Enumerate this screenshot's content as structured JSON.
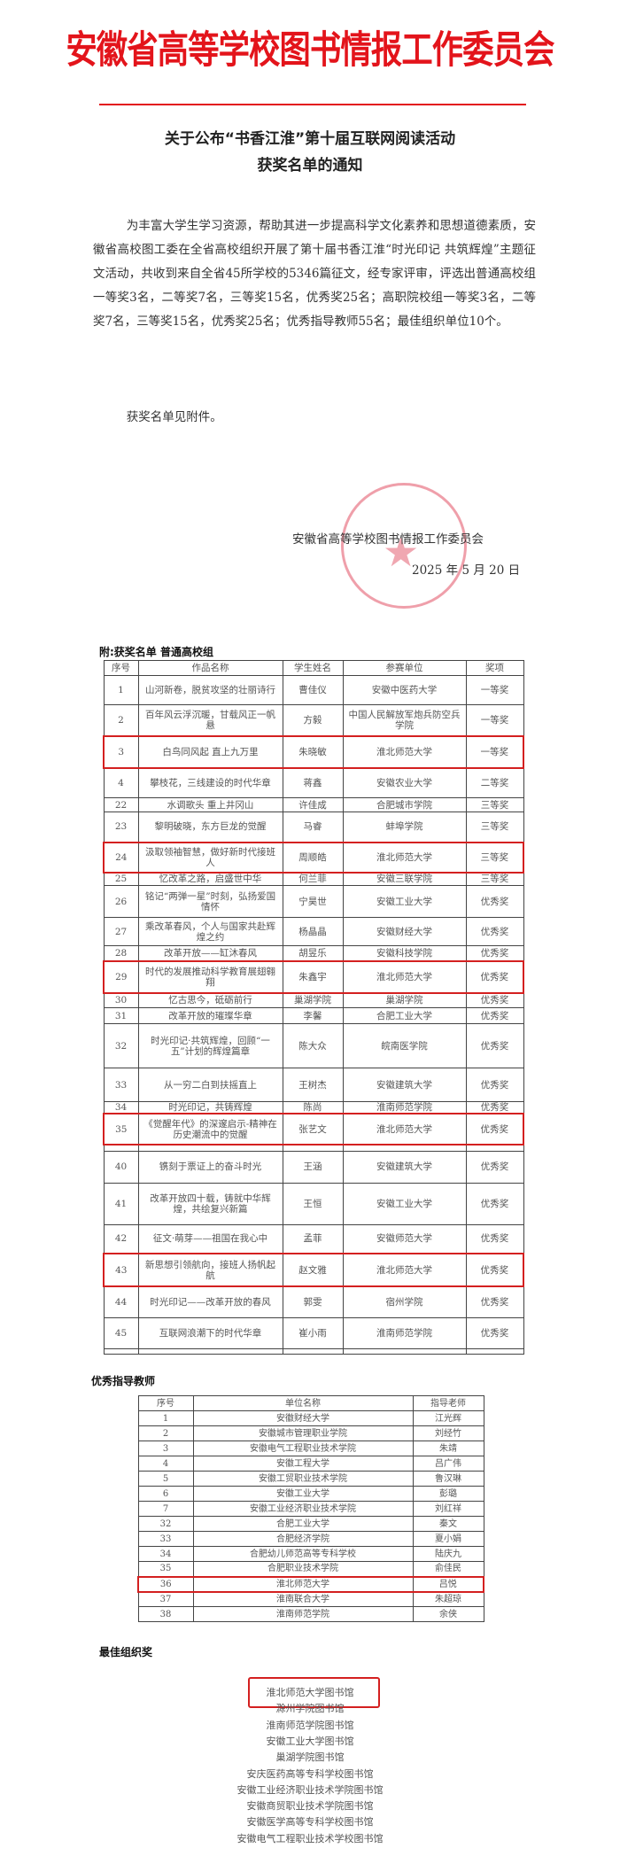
{
  "header": {
    "org_name": "安徽省高等学校图书情报工作委员会",
    "accent_color": "#e3141b"
  },
  "notice": {
    "title_line1": "关于公布“书香江淮”第十届互联网阅读活动",
    "title_line2": "获奖名单的通知",
    "paragraph1": "为丰富大学生学习资源，帮助其进一步提高科学文化素养和思想道德素质，安徽省高校图工委在全省高校组织开展了第十届书香江淮“时光印记 共筑辉煌”主题征文活动，共收到来自全省45所学校的5346篇征文，经专家评审，评选出普通高校组一等奖3名，二等奖7名，三等奖15名，优秀奖25名；高职院校组一等奖3名，二等奖7名，三等奖15名，优秀奖25名；优秀指导教师55名；最佳组织单位10个。",
    "paragraph2": "获奖名单见附件。",
    "signature": "安徽省高等学校图书情报工作委员会",
    "date": "2025 年 5 月 20 日",
    "seal_text": "安徽省高等学校图书情报工作委员会"
  },
  "awards": {
    "heading": "附:获奖名单 普通高校组",
    "columns": [
      "序号",
      "作品名称",
      "学生姓名",
      "参赛单位",
      "奖项"
    ],
    "rows": [
      {
        "no": "1",
        "work": "山河新卷，脱贫攻坚的壮丽诗行",
        "student": "曹佳仪",
        "unit": "安徽中医药大学",
        "award": "一等奖",
        "highlight": false
      },
      {
        "no": "2",
        "work": "百年风云浮沉暖，甘载风正一帆悬",
        "student": "方毅",
        "unit": "中国人民解放军炮兵防空兵学院",
        "award": "一等奖",
        "highlight": false
      },
      {
        "no": "3",
        "work": "白鸟同风起 直上九万里",
        "student": "朱晓敏",
        "unit": "淮北师范大学",
        "award": "一等奖",
        "highlight": true
      },
      {
        "no": "4",
        "work": "攀枝花，三线建设的时代华章",
        "student": "蒋鑫",
        "unit": "安徽农业大学",
        "award": "二等奖",
        "highlight": false
      },
      {
        "no": "22",
        "work": "水调歌头 重上井冈山",
        "student": "许佳成",
        "unit": "合肥城市学院",
        "award": "三等奖",
        "highlight": false
      },
      {
        "no": "23",
        "work": "黎明破晓，东方巨龙的觉醒",
        "student": "马睿",
        "unit": "蚌埠学院",
        "award": "三等奖",
        "highlight": false
      },
      {
        "no": "24",
        "work": "汲取领袖智慧，做好新时代接班人",
        "student": "周顺皓",
        "unit": "淮北师范大学",
        "award": "三等奖",
        "highlight": true
      },
      {
        "no": "25",
        "work": "忆改革之路，启盛世中华",
        "student": "何兰菲",
        "unit": "安徽三联学院",
        "award": "三等奖",
        "highlight": false
      },
      {
        "no": "26",
        "work": "铭记“两弹一星”时刻，弘扬爱国情怀",
        "student": "宁昊世",
        "unit": "安徽工业大学",
        "award": "优秀奖",
        "highlight": false
      },
      {
        "no": "27",
        "work": "乘改革春风，个人与国家共赴辉煌之约",
        "student": "杨晶晶",
        "unit": "安徽财经大学",
        "award": "优秀奖",
        "highlight": false
      },
      {
        "no": "28",
        "work": "改革开放——缸沐春风",
        "student": "胡昱乐",
        "unit": "安徽科技学院",
        "award": "优秀奖",
        "highlight": false
      },
      {
        "no": "29",
        "work": "时代的发展推动科学教育展翅翱翔",
        "student": "朱鑫宇",
        "unit": "淮北师范大学",
        "award": "优秀奖",
        "highlight": true
      },
      {
        "no": "30",
        "work": "忆古思今，砥砺前行",
        "student": "巢湖学院",
        "unit": "巢湖学院",
        "award": "优秀奖",
        "highlight": false
      },
      {
        "no": "31",
        "work": "改革开放的璀璨华章",
        "student": "李馨",
        "unit": "合肥工业大学",
        "award": "优秀奖",
        "highlight": false
      },
      {
        "no": "32",
        "work": "时光印记·共筑辉煌，回顾“一五”计划的辉煌篇章",
        "student": "陈大众",
        "unit": "皖南医学院",
        "award": "优秀奖",
        "highlight": false
      },
      {
        "no": "33",
        "work": "从一穷二白到扶摇直上",
        "student": "王树杰",
        "unit": "安徽建筑大学",
        "award": "优秀奖",
        "highlight": false
      },
      {
        "no": "34",
        "work": "时光印记，共铸辉煌",
        "student": "陈尚",
        "unit": "淮南师范学院",
        "award": "优秀奖",
        "highlight": false
      },
      {
        "no": "35",
        "work": "《觉醒年代》的深邃启示-精神在历史潮流中的觉醒",
        "student": "张艺文",
        "unit": "淮北师范大学",
        "award": "优秀奖",
        "highlight": true
      },
      {
        "no": "40",
        "work": "镌刻于票证上的奋斗时光",
        "student": "王涵",
        "unit": "安徽建筑大学",
        "award": "优秀奖",
        "highlight": false
      },
      {
        "no": "41",
        "work": "改革开放四十载，铸就中华辉煌，共绘复兴新篇",
        "student": "王恒",
        "unit": "安徽工业大学",
        "award": "优秀奖",
        "highlight": false
      },
      {
        "no": "42",
        "work": "征文·萌芽——祖国在我心中",
        "student": "孟菲",
        "unit": "安徽师范大学",
        "award": "优秀奖",
        "highlight": false
      },
      {
        "no": "43",
        "work": "新思想引领航向，接班人扬帆起航",
        "student": "赵文雅",
        "unit": "淮北师范大学",
        "award": "优秀奖",
        "highlight": true
      },
      {
        "no": "44",
        "work": "时光印记——改革开放的春风",
        "student": "郭雯",
        "unit": "宿州学院",
        "award": "优秀奖",
        "highlight": false
      },
      {
        "no": "45",
        "work": "互联网浪潮下的时代华章",
        "student": "崔小雨",
        "unit": "淮南师范学院",
        "award": "优秀奖",
        "highlight": false
      }
    ]
  },
  "teachers": {
    "heading": "优秀指导教师",
    "columns": [
      "序号",
      "单位名称",
      "指导老师"
    ],
    "rows": [
      {
        "no": "1",
        "unit": "安徽财经大学",
        "teacher": "江光辉",
        "highlight": false
      },
      {
        "no": "2",
        "unit": "安徽城市管理职业学院",
        "teacher": "刘经竹",
        "highlight": false
      },
      {
        "no": "3",
        "unit": "安徽电气工程职业技术学院",
        "teacher": "朱靖",
        "highlight": false
      },
      {
        "no": "4",
        "unit": "安徽工程大学",
        "teacher": "吕广伟",
        "highlight": false
      },
      {
        "no": "5",
        "unit": "安徽工贸职业技术学院",
        "teacher": "鲁汉琳",
        "highlight": false
      },
      {
        "no": "6",
        "unit": "安徽工业大学",
        "teacher": "彭璐",
        "highlight": false
      },
      {
        "no": "7",
        "unit": "安徽工业经济职业技术学院",
        "teacher": "刘红祥",
        "highlight": false
      },
      {
        "no": "32",
        "unit": "合肥工业大学",
        "teacher": "秦文",
        "highlight": false
      },
      {
        "no": "33",
        "unit": "合肥经济学院",
        "teacher": "夏小娟",
        "highlight": false
      },
      {
        "no": "34",
        "unit": "合肥幼儿师范高等专科学校",
        "teacher": "陆庆九",
        "highlight": false
      },
      {
        "no": "35",
        "unit": "合肥职业技术学院",
        "teacher": "俞佳民",
        "highlight": false
      },
      {
        "no": "36",
        "unit": "淮北师范大学",
        "teacher": "吕悦",
        "highlight": true
      },
      {
        "no": "37",
        "unit": "淮南联合大学",
        "teacher": "朱超琼",
        "highlight": false
      },
      {
        "no": "38",
        "unit": "淮南师范学院",
        "teacher": "余侠",
        "highlight": false
      }
    ]
  },
  "best_org": {
    "heading": "最佳组织奖",
    "items": [
      "淮北师范大学图书馆",
      "滁州学院图书馆",
      "淮南师范学院图书馆",
      "安徽工业大学图书馆",
      "巢湖学院图书馆",
      "安庆医药高等专科学校图书馆",
      "安徽工业经济职业技术学院图书馆",
      "安徽商贸职业技术学院图书馆",
      "安徽医学高等专科学校图书馆",
      "安徽电气工程职业技术学校图书馆"
    ],
    "highlight_index": 0,
    "highlight_color": "#d42020"
  }
}
